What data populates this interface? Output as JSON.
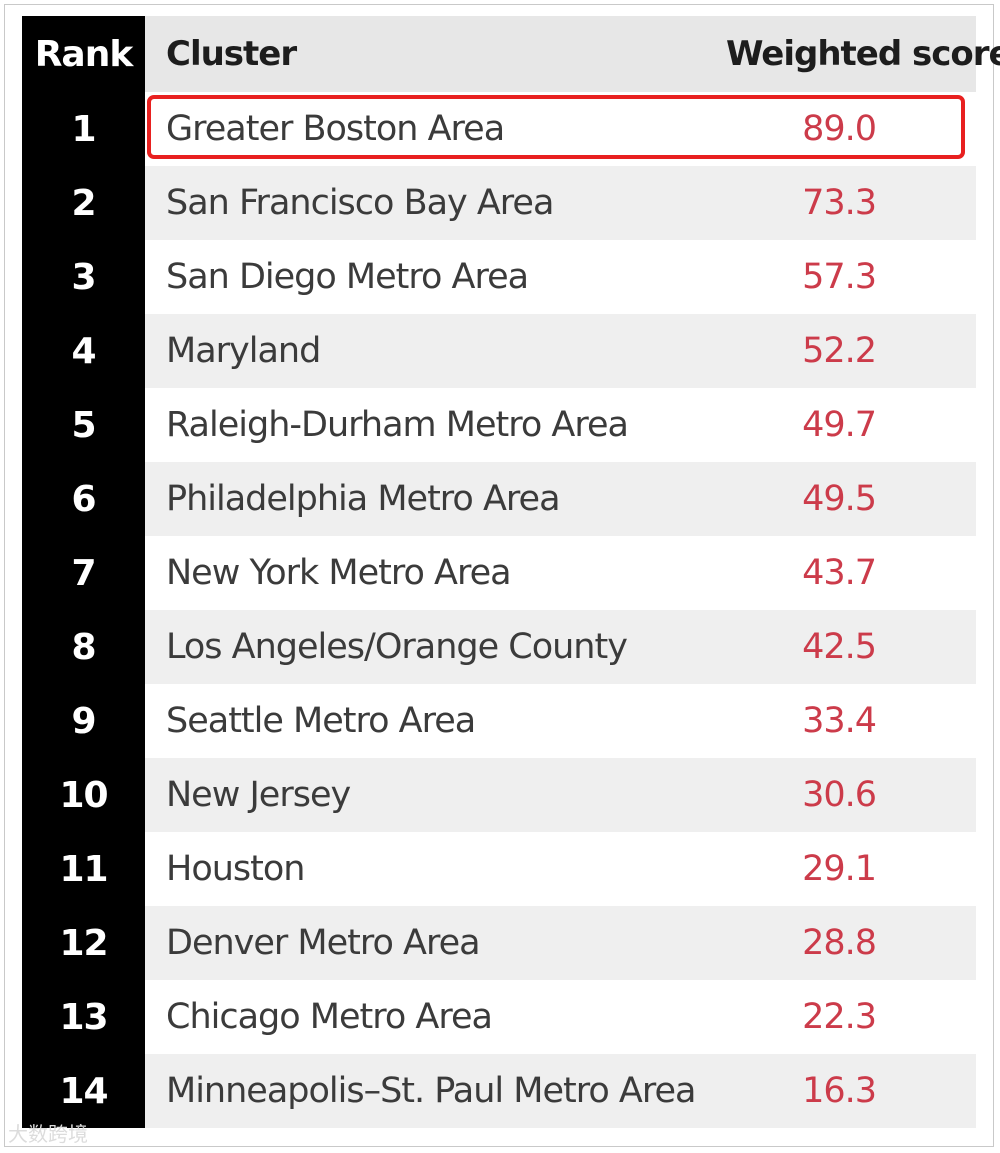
{
  "header": {
    "rank": "Rank",
    "cluster": "Cluster",
    "score": "Weighted score"
  },
  "rows": [
    {
      "rank": "1",
      "cluster": "Greater Boston Area",
      "score": "89.0"
    },
    {
      "rank": "2",
      "cluster": "San Francisco Bay Area",
      "score": "73.3"
    },
    {
      "rank": "3",
      "cluster": "San Diego Metro Area",
      "score": "57.3"
    },
    {
      "rank": "4",
      "cluster": "Maryland",
      "score": "52.2"
    },
    {
      "rank": "5",
      "cluster": "Raleigh-Durham Metro Area",
      "score": "49.7"
    },
    {
      "rank": "6",
      "cluster": "Philadelphia Metro Area",
      "score": "49.5"
    },
    {
      "rank": "7",
      "cluster": "New York Metro Area",
      "score": "43.7"
    },
    {
      "rank": "8",
      "cluster": "Los Angeles/Orange County",
      "score": "42.5"
    },
    {
      "rank": "9",
      "cluster": "Seattle Metro Area",
      "score": "33.4"
    },
    {
      "rank": "10",
      "cluster": "New Jersey",
      "score": "30.6"
    },
    {
      "rank": "11",
      "cluster": "Houston",
      "score": "29.1"
    },
    {
      "rank": "12",
      "cluster": "Denver Metro Area",
      "score": "28.8"
    },
    {
      "rank": "13",
      "cluster": "Chicago Metro Area",
      "score": "22.3"
    },
    {
      "rank": "14",
      "cluster": "Minneapolis–St. Paul Metro Area",
      "score": "16.3"
    }
  ],
  "watermark": "大数跨境",
  "colors": {
    "rank_background": "#000000",
    "score_text": "#cc3b4a",
    "highlight_border": "#e8201f",
    "row_shade": "#efefef",
    "header_background": "#e7e7e7"
  }
}
